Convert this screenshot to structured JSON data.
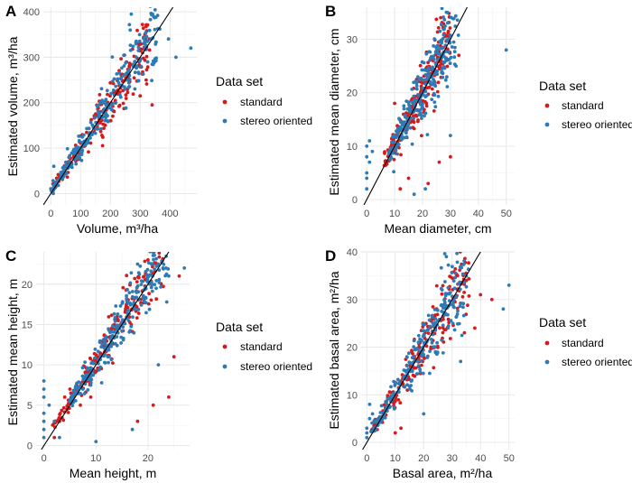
{
  "legend": {
    "title": "Data set",
    "items": [
      {
        "label": "standard",
        "color": "#d7191c"
      },
      {
        "label": "stereo oriented",
        "color": "#2c7bb6"
      }
    ]
  },
  "chart_data": [
    {
      "type": "scatter",
      "panel": "A",
      "xlabel": "Volume, m³/ha",
      "ylabel": "Estimated volume, m³/ha",
      "xlim": [
        -25,
        490
      ],
      "ylim": [
        -25,
        410
      ],
      "xticks": [
        0,
        100,
        200,
        300,
        400
      ],
      "yticks": [
        0,
        100,
        200,
        300,
        400
      ],
      "identity_line": true,
      "spread": 0.13,
      "offset": 4,
      "series": [
        {
          "name": "standard",
          "n": 220,
          "range": [
            5,
            330
          ],
          "outliers": [
            [
              300,
              318
            ],
            [
              320,
              250
            ],
            [
              340,
              195
            ]
          ]
        },
        {
          "name": "stereo oriented",
          "n": 260,
          "range": [
            0,
            360
          ],
          "outliers": [
            [
              270,
              395
            ],
            [
              470,
              320
            ],
            [
              395,
              340
            ],
            [
              420,
              300
            ],
            [
              10,
              60
            ]
          ]
        }
      ]
    },
    {
      "type": "scatter",
      "panel": "B",
      "xlabel": "Mean diameter, cm",
      "ylabel": "Estimated mean diameter, cm",
      "xlim": [
        -2,
        53
      ],
      "ylim": [
        -1,
        36
      ],
      "xticks": [
        0,
        10,
        20,
        30,
        40,
        50
      ],
      "yticks": [
        0,
        10,
        20,
        30
      ],
      "identity_line": true,
      "spread": 0.12,
      "offset": 0.5,
      "series": [
        {
          "name": "standard",
          "n": 220,
          "range": [
            6,
            30
          ],
          "outliers": [
            [
              12,
              2
            ],
            [
              15,
              4
            ],
            [
              22,
              3
            ],
            [
              26,
              7
            ],
            [
              30,
              8
            ],
            [
              10,
              18
            ],
            [
              33,
              27
            ]
          ]
        },
        {
          "name": "stereo oriented",
          "n": 260,
          "range": [
            8,
            32
          ],
          "outliers": [
            [
              0,
              2
            ],
            [
              0,
              5
            ],
            [
              0,
              8
            ],
            [
              1,
              11
            ],
            [
              0,
              4
            ],
            [
              1,
              7
            ],
            [
              2,
              9
            ],
            [
              0,
              10
            ],
            [
              17,
              1
            ],
            [
              21,
              2
            ],
            [
              30,
              12
            ],
            [
              32,
              25
            ],
            [
              50,
              28
            ],
            [
              29,
              35
            ]
          ]
        }
      ]
    },
    {
      "type": "scatter",
      "panel": "C",
      "xlabel": "Mean height, m",
      "ylabel": "Estimated mean height, m",
      "xlim": [
        -1.5,
        28
      ],
      "ylim": [
        -0.5,
        24
      ],
      "xticks": [
        0,
        10,
        20
      ],
      "yticks": [
        0,
        5,
        10,
        15,
        20
      ],
      "identity_line": true,
      "spread": 0.1,
      "offset": 0.3,
      "series": [
        {
          "name": "standard",
          "n": 220,
          "range": [
            2,
            23
          ],
          "outliers": [
            [
              2,
              1
            ],
            [
              3,
              3
            ],
            [
              4,
              6
            ],
            [
              5,
              7
            ],
            [
              7,
              5
            ],
            [
              9,
              6
            ],
            [
              18,
              3
            ],
            [
              21,
              5
            ],
            [
              24,
              6
            ],
            [
              25,
              11
            ],
            [
              26,
              21
            ],
            [
              20,
              23
            ]
          ]
        },
        {
          "name": "stereo oriented",
          "n": 260,
          "range": [
            5,
            24
          ],
          "outliers": [
            [
              0,
              2
            ],
            [
              0,
              4
            ],
            [
              0,
              6
            ],
            [
              0,
              8
            ],
            [
              0,
              1
            ],
            [
              0,
              3
            ],
            [
              1,
              5
            ],
            [
              0,
              7
            ],
            [
              2,
              3
            ],
            [
              3,
              1
            ],
            [
              10,
              0.5
            ],
            [
              17,
              2
            ],
            [
              22,
              10
            ],
            [
              24,
              21
            ],
            [
              27,
              22
            ]
          ]
        }
      ]
    },
    {
      "type": "scatter",
      "panel": "D",
      "xlabel": "Basal area, m²/ha",
      "ylabel": "Estimated basal area, m²/ha",
      "xlim": [
        -2,
        52
      ],
      "ylim": [
        -1.5,
        40
      ],
      "xticks": [
        0,
        10,
        20,
        30,
        40,
        50
      ],
      "yticks": [
        0,
        10,
        20,
        30,
        40
      ],
      "identity_line": true,
      "spread": 0.15,
      "offset": 0.5,
      "series": [
        {
          "name": "standard",
          "n": 220,
          "range": [
            2,
            36
          ],
          "outliers": [
            [
              10,
              2
            ],
            [
              12,
              3
            ],
            [
              35,
              34
            ],
            [
              40,
              31
            ],
            [
              44,
              30
            ],
            [
              38,
              24
            ]
          ]
        },
        {
          "name": "stereo oriented",
          "n": 260,
          "range": [
            1,
            35
          ],
          "outliers": [
            [
              0,
              1
            ],
            [
              0,
              3
            ],
            [
              1,
              5
            ],
            [
              0,
              2
            ],
            [
              1,
              8
            ],
            [
              2,
              6
            ],
            [
              28,
              39
            ],
            [
              48,
              28
            ],
            [
              50,
              33
            ],
            [
              33,
              17
            ],
            [
              20,
              6
            ]
          ]
        }
      ]
    }
  ]
}
